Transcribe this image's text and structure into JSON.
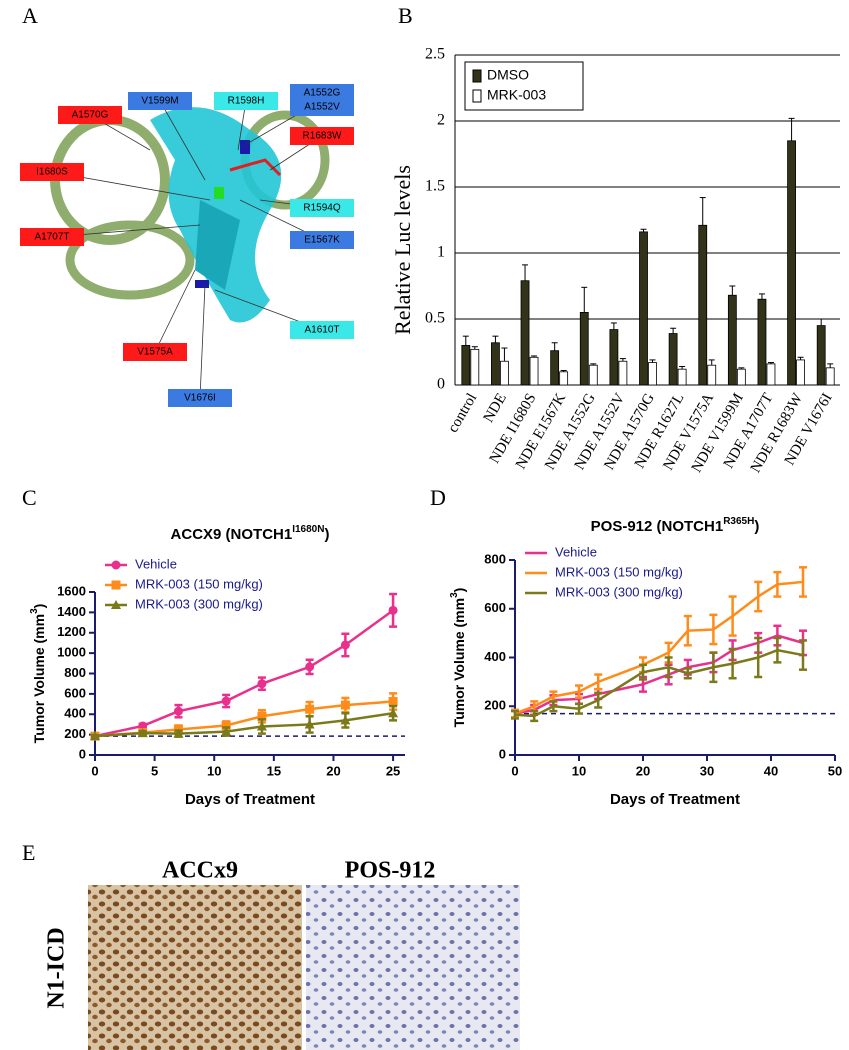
{
  "figure": {
    "panel_letters": [
      "A",
      "B",
      "C",
      "D",
      "E"
    ],
    "structure_labels": [
      {
        "lines": [
          "A1570G"
        ],
        "color": "#ff1a1a"
      },
      {
        "lines": [
          "V1599M"
        ],
        "color": "#3b7ae0"
      },
      {
        "lines": [
          "R1598H"
        ],
        "color": "#3ae8e8"
      },
      {
        "lines": [
          "A1552G",
          "A1552V"
        ],
        "color": "#3b7ae0"
      },
      {
        "lines": [
          "R1683W"
        ],
        "color": "#ff1a1a"
      },
      {
        "lines": [
          "I1680S"
        ],
        "color": "#ff1a1a"
      },
      {
        "lines": [
          "R1594Q"
        ],
        "color": "#3ae8e8"
      },
      {
        "lines": [
          "A1707T"
        ],
        "color": "#ff1a1a"
      },
      {
        "lines": [
          "E1567K"
        ],
        "color": "#3b7ae0"
      },
      {
        "lines": [
          "A1610T"
        ],
        "color": "#3ae8e8"
      },
      {
        "lines": [
          "V1575A"
        ],
        "color": "#ff1a1a"
      },
      {
        "lines": [
          "V1676I"
        ],
        "color": "#3b7ae0"
      }
    ],
    "ihc": {
      "titles": [
        "ACCx9",
        "POS-912"
      ],
      "row_label": "N1-ICD"
    }
  },
  "chart_data": [
    {
      "type": "bar",
      "ylabel": "Relative Luc levels",
      "categories": [
        "control",
        "NDE",
        "NDE I1680S",
        "NDE E1567K",
        "NDE A1552G",
        "NDE A1552V",
        "NDE A1570G",
        "NDE R1627L",
        "NDE V1575A",
        "NDE V1599M",
        "NDE A1707T",
        "NDE R1683W",
        "NDE V1676I"
      ],
      "series": [
        {
          "name": "DMSO",
          "color": "#33331a",
          "values": [
            0.3,
            0.32,
            0.79,
            0.26,
            0.55,
            0.42,
            1.16,
            0.39,
            1.21,
            0.68,
            0.65,
            1.85,
            0.45
          ],
          "errors": [
            0.07,
            0.05,
            0.12,
            0.06,
            0.19,
            0.05,
            0.02,
            0.04,
            0.21,
            0.07,
            0.04,
            0.17,
            0.05
          ]
        },
        {
          "name": "MRK-003",
          "color": "#ffffff",
          "values": [
            0.27,
            0.18,
            0.21,
            0.1,
            0.15,
            0.18,
            0.17,
            0.12,
            0.15,
            0.12,
            0.16,
            0.19,
            0.13
          ],
          "errors": [
            0.02,
            0.1,
            0.01,
            0.01,
            0.01,
            0.02,
            0.02,
            0.02,
            0.04,
            0.01,
            0.01,
            0.02,
            0.03
          ]
        }
      ],
      "ylim": [
        0,
        2.5
      ],
      "yticks": [
        0,
        0.5,
        1,
        1.5,
        2,
        2.5
      ],
      "grid": true,
      "legend": "upper left"
    },
    {
      "type": "line",
      "title": "ACCX9 (NOTCH1",
      "title_sup": "I1680N",
      "title_end": ")",
      "ylabel": "Tumor Volume (mm",
      "ylabel_sup": "3",
      "ylabel_end": ")",
      "xlabel": "Days of Treatment",
      "x": [
        0,
        4,
        7,
        11,
        14,
        18,
        21,
        25
      ],
      "series": [
        {
          "name": "Vehicle",
          "color": "#e8308c",
          "marker": "circle",
          "values": [
            185,
            285,
            430,
            530,
            700,
            865,
            1080,
            1420
          ],
          "errors": [
            10,
            20,
            60,
            60,
            60,
            70,
            110,
            160
          ]
        },
        {
          "name": "MRK-003 (150 mg/kg)",
          "color": "#ff8c1a",
          "marker": "square",
          "values": [
            185,
            220,
            250,
            290,
            380,
            450,
            490,
            525
          ],
          "errors": [
            10,
            20,
            40,
            40,
            60,
            70,
            70,
            80
          ]
        },
        {
          "name": "MRK-003 (300 mg/kg)",
          "color": "#7a7a1a",
          "marker": "triangle",
          "values": [
            185,
            215,
            210,
            230,
            280,
            300,
            340,
            410
          ],
          "errors": [
            10,
            20,
            30,
            40,
            70,
            80,
            70,
            70
          ]
        }
      ],
      "xlim": [
        0,
        26
      ],
      "xticks": [
        0,
        5,
        10,
        15,
        20,
        25
      ],
      "ylim": [
        0,
        1600
      ],
      "yticks": [
        0,
        200,
        400,
        600,
        800,
        1000,
        1200,
        1400,
        1600
      ],
      "reference_line": 185,
      "legend": "upper left"
    },
    {
      "type": "line",
      "title": "POS-912 (NOTCH1",
      "title_sup": "R365H",
      "title_end": ")",
      "ylabel": "Tumor Volume (mm",
      "ylabel_sup": "3",
      "ylabel_end": ")",
      "xlabel": "Days of Treatment",
      "x": [
        0,
        3,
        6,
        10,
        13,
        20,
        24,
        27,
        31,
        34,
        38,
        41,
        45
      ],
      "series": [
        {
          "name": "Vehicle",
          "color": "#e8308c",
          "marker": "none",
          "values": [
            170,
            185,
            225,
            230,
            250,
            290,
            330,
            360,
            380,
            430,
            460,
            490,
            460
          ],
          "errors": [
            15,
            20,
            20,
            20,
            20,
            30,
            40,
            30,
            40,
            40,
            40,
            40,
            50
          ]
        },
        {
          "name": "MRK-003 (150 mg/kg)",
          "color": "#ff8c1a",
          "marker": "none",
          "values": [
            170,
            200,
            240,
            260,
            300,
            370,
            420,
            510,
            515,
            570,
            650,
            700,
            710
          ],
          "errors": [
            15,
            20,
            20,
            25,
            30,
            30,
            40,
            60,
            60,
            80,
            60,
            50,
            60
          ]
        },
        {
          "name": "MRK-003 (300 mg/kg)",
          "color": "#7a7a1a",
          "marker": "none",
          "values": [
            165,
            160,
            200,
            190,
            225,
            340,
            360,
            335,
            360,
            375,
            400,
            430,
            410
          ],
          "errors": [
            15,
            20,
            20,
            20,
            30,
            30,
            40,
            20,
            60,
            60,
            80,
            50,
            60
          ]
        }
      ],
      "xlim": [
        0,
        50
      ],
      "xticks": [
        0,
        10,
        20,
        30,
        40,
        50
      ],
      "ylim": [
        0,
        800
      ],
      "yticks": [
        0,
        200,
        400,
        600,
        800
      ],
      "reference_line": 170,
      "legend": "upper left"
    }
  ]
}
